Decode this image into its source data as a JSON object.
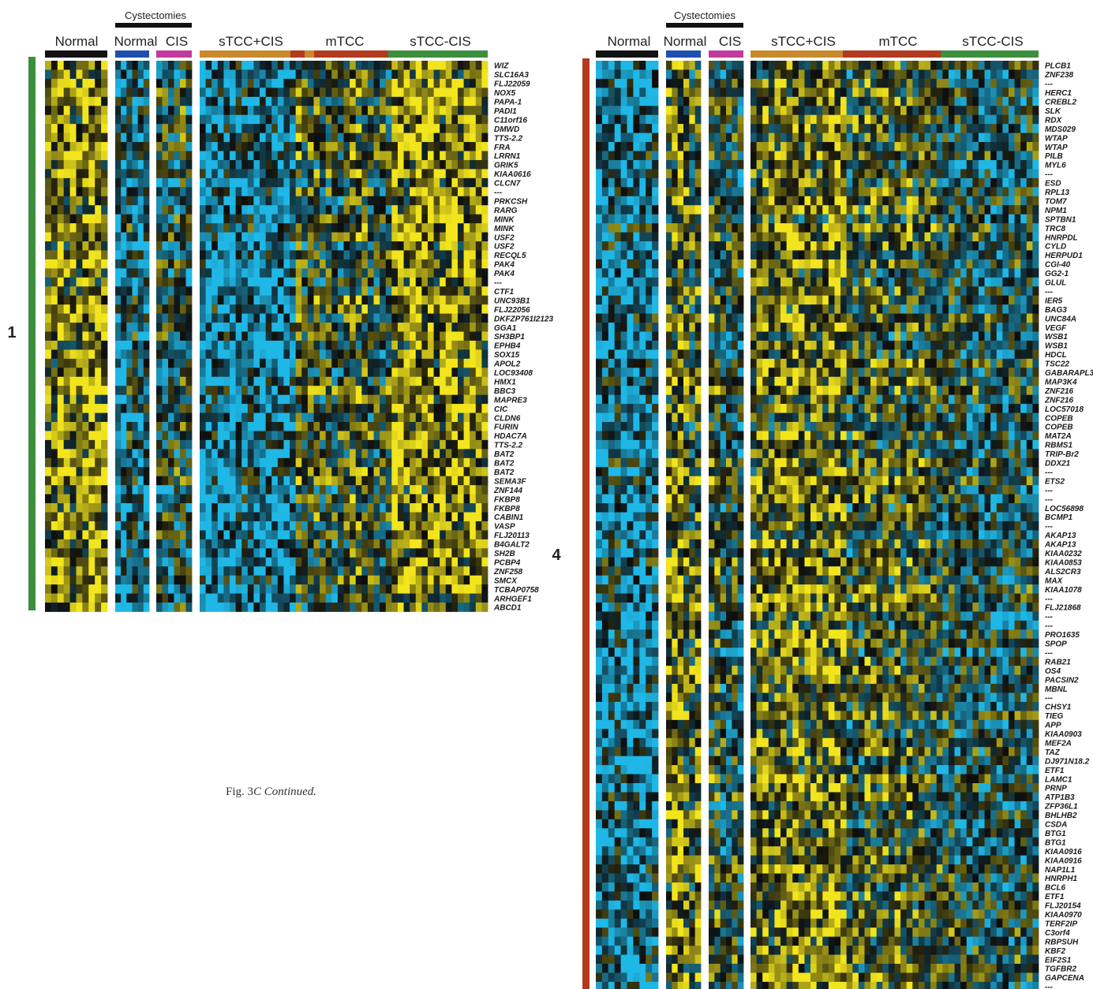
{
  "caption": {
    "prefix": "Fig. 3",
    "panel": "C",
    "suffix": "Continued."
  },
  "colors": {
    "positive": "#f2e51d",
    "negative": "#1fb7e6",
    "neutral": "#0d0d0d",
    "group_normal": "#111111",
    "group_cyst_normal": "#1f4fb0",
    "group_cyst_cis": "#c23a9e",
    "group_stcc_cis_plus": "#c88a2a",
    "group_mtcc": "#b23a1e",
    "group_stcc_cis_minus": "#3c8f3c",
    "cluster1_bar": "#3c8f3c",
    "cluster4_bar": "#b23a1e"
  },
  "chart_data": [
    {
      "type": "heatmap",
      "cluster_label": "1",
      "super_header": "Cystectomies",
      "column_groups": [
        "Normal",
        "Normal",
        "CIS",
        "sTCC+CIS",
        "mTCC",
        "sTCC-CIS"
      ],
      "scale": "expression: yellow = up, blue = down, black = neutral",
      "rows": [
        "WIZ",
        "SLC16A3",
        "FLJ22059",
        "NOX5",
        "PAPA-1",
        "PADI1",
        "C11orf16",
        "DMWD",
        "TTS-2.2",
        "FRA",
        "LRRN1",
        "GRIK5",
        "KIAA0616",
        "CLCN7",
        "---",
        "PRKCSH",
        "RARG",
        "MINK",
        "MINK",
        "USF2",
        "USF2",
        "RECQL5",
        "PAK4",
        "PAK4",
        "---",
        "CTF1",
        "UNC93B1",
        "FLJ22056",
        "DKFZP761I2123",
        "GGA1",
        "SH3BP1",
        "EPHB4",
        "SOX15",
        "APOL2",
        "LOC93408",
        "HMX1",
        "BBC3",
        "MAPRE3",
        "CIC",
        "CLDN6",
        "FURIN",
        "HDAC7A",
        "TTS-2.2",
        "BAT2",
        "BAT2",
        "BAT2",
        "SEMA3F",
        "ZNF144",
        "FKBP8",
        "FKBP8",
        "CABIN1",
        "VASP",
        "FLJ20113",
        "B4GALT2",
        "SH2B",
        "PCBP4",
        "ZNF258",
        "SMCX",
        "TCBAP0758",
        "ARHGEF1",
        "ABCD1"
      ]
    },
    {
      "type": "heatmap",
      "cluster_label": "4",
      "super_header": "Cystectomies",
      "column_groups": [
        "Normal",
        "Normal",
        "CIS",
        "sTCC+CIS",
        "mTCC",
        "sTCC-CIS"
      ],
      "scale": "expression: yellow = up, blue = down, black = neutral",
      "rows": [
        "PLCB1",
        "ZNF238",
        "---",
        "HERC1",
        "CREBL2",
        "SLK",
        "RDX",
        "MDS029",
        "WTAP",
        "WTAP",
        "PILB",
        "MYL6",
        "---",
        "ESD",
        "RPL13",
        "TOM7",
        "NPM1",
        "SPTBN1",
        "TRC8",
        "HNRPDL",
        "CYLD",
        "HERPUD1",
        "CGI-40",
        "GG2-1",
        "GLUL",
        "---",
        "IER5",
        "BAG3",
        "UNC84A",
        "VEGF",
        "WSB1",
        "WSB1",
        "HDCL",
        "TSC22",
        "GABARAPL3",
        "MAP3K4",
        "ZNF216",
        "ZNF216",
        "LOC57018",
        "COPEB",
        "COPEB",
        "MAT2A",
        "RBMS1",
        "TRIP-Br2",
        "DDX21",
        "---",
        "ETS2",
        "---",
        "---",
        "LOC56898",
        "BCMP1",
        "---",
        "AKAP13",
        "AKAP13",
        "KIAA0232",
        "KIAA0853",
        "ALS2CR3",
        "MAX",
        "KIAA1078",
        "---",
        "FLJ21868",
        "---",
        "---",
        "PRO1635",
        "SPOP",
        "---",
        "RAB21",
        "OS4",
        "PACSIN2",
        "MBNL",
        "---",
        "CHSY1",
        "TIEG",
        "APP",
        "KIAA0903",
        "MEF2A",
        "TAZ",
        "DJ971N18.2",
        "ETF1",
        "LAMC1",
        "PRNP",
        "ATP1B3",
        "ZFP36L1",
        "BHLHB2",
        "CSDA",
        "BTG1",
        "BTG1",
        "KIAA0916",
        "KIAA0916",
        "NAP1L1",
        "HNRPH1",
        "BCL6",
        "ETF1",
        "FLJ20154",
        "KIAA0970",
        "TERF2IP",
        "C3orf4",
        "RBPSUH",
        "KBF2",
        "EIF2S1",
        "TGFBR2",
        "GAPCENA",
        "---"
      ]
    }
  ]
}
